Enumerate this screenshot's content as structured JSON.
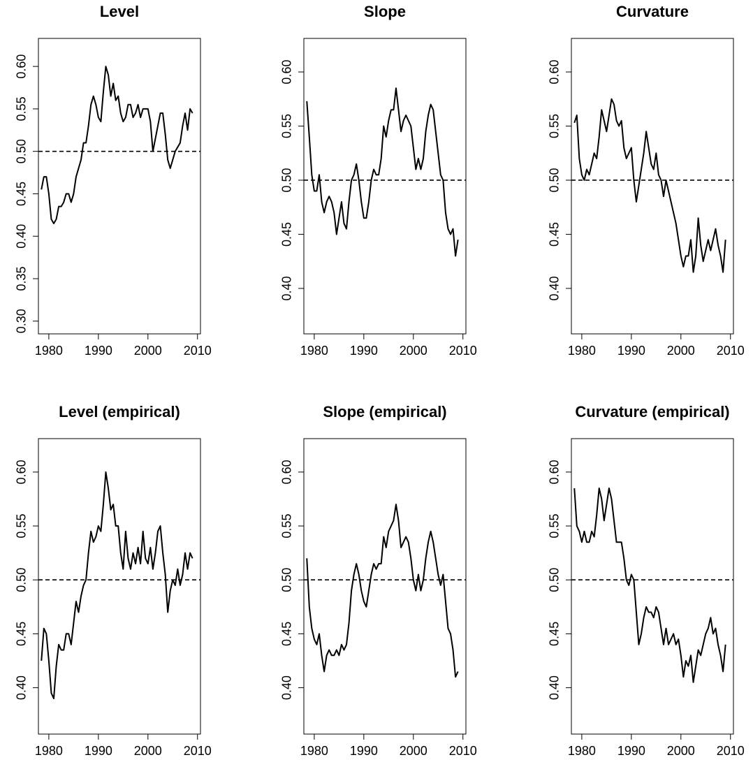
{
  "chart_data": [
    {
      "type": "line",
      "title": "Level",
      "x": [
        1978.5,
        1979,
        1979.5,
        1980,
        1980.5,
        1981,
        1981.5,
        1982,
        1982.5,
        1983,
        1983.5,
        1984,
        1984.5,
        1985,
        1985.5,
        1986,
        1986.5,
        1987,
        1987.5,
        1988,
        1988.5,
        1989,
        1989.5,
        1990,
        1990.5,
        1991,
        1991.5,
        1992,
        1992.5,
        1993,
        1993.5,
        1994,
        1994.5,
        1995,
        1995.5,
        1996,
        1996.5,
        1997,
        1997.5,
        1998,
        1998.5,
        1999,
        1999.5,
        2000,
        2000.5,
        2001,
        2001.5,
        2002,
        2002.5,
        2003,
        2003.5,
        2004,
        2004.5,
        2005,
        2005.5,
        2006,
        2006.5,
        2007,
        2007.5,
        2008,
        2008.5,
        2009
      ],
      "values": [
        0.455,
        0.47,
        0.47,
        0.45,
        0.42,
        0.415,
        0.42,
        0.435,
        0.435,
        0.44,
        0.45,
        0.45,
        0.44,
        0.45,
        0.47,
        0.48,
        0.49,
        0.51,
        0.51,
        0.53,
        0.555,
        0.565,
        0.555,
        0.54,
        0.535,
        0.57,
        0.6,
        0.59,
        0.565,
        0.58,
        0.56,
        0.565,
        0.545,
        0.535,
        0.54,
        0.555,
        0.555,
        0.54,
        0.545,
        0.555,
        0.54,
        0.55,
        0.55,
        0.55,
        0.535,
        0.5,
        0.515,
        0.53,
        0.545,
        0.545,
        0.52,
        0.49,
        0.48,
        0.49,
        0.5,
        0.505,
        0.51,
        0.53,
        0.545,
        0.525,
        0.55,
        0.545
      ],
      "color": "#000000",
      "hline": 0.5,
      "xlim": [
        1977.9,
        2010.6
      ],
      "xticks": [
        1980,
        1990,
        2000,
        2010
      ],
      "ylim": [
        0.285,
        0.633
      ],
      "yticks": [
        {
          "value": 0.3,
          "label": "0.30"
        },
        {
          "value": 0.35,
          "label": "0.35"
        },
        {
          "value": 0.4,
          "label": "0.40"
        },
        {
          "value": 0.45,
          "label": "0.45"
        },
        {
          "value": 0.5,
          "label": "0.50"
        },
        {
          "value": 0.55,
          "label": "0.55"
        },
        {
          "value": 0.6,
          "label": "0.60"
        }
      ]
    },
    {
      "type": "line",
      "title": "Slope",
      "x": [
        1978.5,
        1979,
        1979.5,
        1980,
        1980.5,
        1981,
        1981.5,
        1982,
        1982.5,
        1983,
        1983.5,
        1984,
        1984.5,
        1985,
        1985.5,
        1986,
        1986.5,
        1987,
        1987.5,
        1988,
        1988.5,
        1989,
        1989.5,
        1990,
        1990.5,
        1991,
        1991.5,
        1992,
        1992.5,
        1993,
        1993.5,
        1994,
        1994.5,
        1995,
        1995.5,
        1996,
        1996.5,
        1997,
        1997.5,
        1998,
        1998.5,
        1999,
        1999.5,
        2000,
        2000.5,
        2001,
        2001.5,
        2002,
        2002.5,
        2003,
        2003.5,
        2004,
        2004.5,
        2005,
        2005.5,
        2006,
        2006.5,
        2007,
        2007.5,
        2008,
        2008.5,
        2009
      ],
      "values": [
        0.573,
        0.54,
        0.505,
        0.49,
        0.49,
        0.505,
        0.48,
        0.47,
        0.48,
        0.485,
        0.48,
        0.47,
        0.45,
        0.465,
        0.48,
        0.46,
        0.455,
        0.48,
        0.5,
        0.505,
        0.515,
        0.5,
        0.48,
        0.465,
        0.465,
        0.48,
        0.5,
        0.51,
        0.505,
        0.505,
        0.52,
        0.55,
        0.54,
        0.555,
        0.565,
        0.565,
        0.585,
        0.565,
        0.545,
        0.555,
        0.56,
        0.555,
        0.55,
        0.53,
        0.51,
        0.52,
        0.51,
        0.52,
        0.545,
        0.56,
        0.57,
        0.565,
        0.545,
        0.525,
        0.505,
        0.5,
        0.47,
        0.455,
        0.45,
        0.455,
        0.43,
        0.445
      ],
      "color": "#000000",
      "hline": 0.5,
      "xlim": [
        1977.9,
        2010.6
      ],
      "xticks": [
        1980,
        1990,
        2000,
        2010
      ],
      "ylim": [
        0.358,
        0.631
      ],
      "yticks": [
        {
          "value": 0.4,
          "label": "0.40"
        },
        {
          "value": 0.45,
          "label": "0.45"
        },
        {
          "value": 0.5,
          "label": "0.50"
        },
        {
          "value": 0.55,
          "label": "0.55"
        },
        {
          "value": 0.6,
          "label": "0.60"
        }
      ]
    },
    {
      "type": "line",
      "title": "Curvature",
      "x": [
        1978.5,
        1979,
        1979.5,
        1980,
        1980.5,
        1981,
        1981.5,
        1982,
        1982.5,
        1983,
        1983.5,
        1984,
        1984.5,
        1985,
        1985.5,
        1986,
        1986.5,
        1987,
        1987.5,
        1988,
        1988.5,
        1989,
        1989.5,
        1990,
        1990.5,
        1991,
        1991.5,
        1992,
        1992.5,
        1993,
        1993.5,
        1994,
        1994.5,
        1995,
        1995.5,
        1996,
        1996.5,
        1997,
        1997.5,
        1998,
        1998.5,
        1999,
        1999.5,
        2000,
        2000.5,
        2001,
        2001.5,
        2002,
        2002.5,
        2003,
        2003.5,
        2004,
        2004.5,
        2005,
        2005.5,
        2006,
        2006.5,
        2007,
        2007.5,
        2008,
        2008.5,
        2009
      ],
      "values": [
        0.553,
        0.56,
        0.52,
        0.505,
        0.5,
        0.51,
        0.505,
        0.515,
        0.525,
        0.52,
        0.54,
        0.565,
        0.555,
        0.545,
        0.56,
        0.575,
        0.57,
        0.555,
        0.55,
        0.555,
        0.53,
        0.52,
        0.525,
        0.53,
        0.5,
        0.48,
        0.495,
        0.51,
        0.525,
        0.545,
        0.53,
        0.515,
        0.51,
        0.525,
        0.505,
        0.5,
        0.485,
        0.5,
        0.49,
        0.48,
        0.47,
        0.46,
        0.445,
        0.43,
        0.42,
        0.43,
        0.43,
        0.445,
        0.415,
        0.43,
        0.465,
        0.44,
        0.425,
        0.435,
        0.445,
        0.435,
        0.445,
        0.455,
        0.44,
        0.43,
        0.415,
        0.445
      ],
      "color": "#000000",
      "hline": 0.5,
      "xlim": [
        1977.9,
        2010.6
      ],
      "xticks": [
        1980,
        1990,
        2000,
        2010
      ],
      "ylim": [
        0.358,
        0.631
      ],
      "yticks": [
        {
          "value": 0.4,
          "label": "0.40"
        },
        {
          "value": 0.45,
          "label": "0.45"
        },
        {
          "value": 0.5,
          "label": "0.50"
        },
        {
          "value": 0.55,
          "label": "0.55"
        },
        {
          "value": 0.6,
          "label": "0.60"
        }
      ]
    },
    {
      "type": "line",
      "title": "Level (empirical)",
      "x": [
        1978.5,
        1979,
        1979.5,
        1980,
        1980.5,
        1981,
        1981.5,
        1982,
        1982.5,
        1983,
        1983.5,
        1984,
        1984.5,
        1985,
        1985.5,
        1986,
        1986.5,
        1987,
        1987.5,
        1988,
        1988.5,
        1989,
        1989.5,
        1990,
        1990.5,
        1991,
        1991.5,
        1992,
        1992.5,
        1993,
        1993.5,
        1994,
        1994.5,
        1995,
        1995.5,
        1996,
        1996.5,
        1997,
        1997.5,
        1998,
        1998.5,
        1999,
        1999.5,
        2000,
        2000.5,
        2001,
        2001.5,
        2002,
        2002.5,
        2003,
        2003.5,
        2004,
        2004.5,
        2005,
        2005.5,
        2006,
        2006.5,
        2007,
        2007.5,
        2008,
        2008.5,
        2009
      ],
      "values": [
        0.425,
        0.455,
        0.45,
        0.425,
        0.395,
        0.39,
        0.42,
        0.44,
        0.435,
        0.435,
        0.45,
        0.45,
        0.44,
        0.46,
        0.48,
        0.47,
        0.485,
        0.495,
        0.5,
        0.525,
        0.545,
        0.535,
        0.54,
        0.55,
        0.545,
        0.57,
        0.6,
        0.585,
        0.565,
        0.57,
        0.55,
        0.55,
        0.525,
        0.51,
        0.545,
        0.52,
        0.51,
        0.525,
        0.515,
        0.53,
        0.515,
        0.545,
        0.52,
        0.515,
        0.53,
        0.51,
        0.525,
        0.545,
        0.55,
        0.525,
        0.505,
        0.47,
        0.49,
        0.5,
        0.495,
        0.51,
        0.495,
        0.505,
        0.525,
        0.51,
        0.525,
        0.52
      ],
      "color": "#000000",
      "hline": 0.5,
      "xlim": [
        1977.9,
        2010.6
      ],
      "xticks": [
        1980,
        1990,
        2000,
        2010
      ],
      "ylim": [
        0.357,
        0.631
      ],
      "yticks": [
        {
          "value": 0.4,
          "label": "0.40"
        },
        {
          "value": 0.45,
          "label": "0.45"
        },
        {
          "value": 0.5,
          "label": "0.50"
        },
        {
          "value": 0.55,
          "label": "0.55"
        },
        {
          "value": 0.6,
          "label": "0.60"
        }
      ]
    },
    {
      "type": "line",
      "title": "Slope (empirical)",
      "x": [
        1978.5,
        1979,
        1979.5,
        1980,
        1980.5,
        1981,
        1981.5,
        1982,
        1982.5,
        1983,
        1983.5,
        1984,
        1984.5,
        1985,
        1985.5,
        1986,
        1986.5,
        1987,
        1987.5,
        1988,
        1988.5,
        1989,
        1989.5,
        1990,
        1990.5,
        1991,
        1991.5,
        1992,
        1992.5,
        1993,
        1993.5,
        1994,
        1994.5,
        1995,
        1995.5,
        1996,
        1996.5,
        1997,
        1997.5,
        1998,
        1998.5,
        1999,
        1999.5,
        2000,
        2000.5,
        2001,
        2001.5,
        2002,
        2002.5,
        2003,
        2003.5,
        2004,
        2004.5,
        2005,
        2005.5,
        2006,
        2006.5,
        2007,
        2007.5,
        2008,
        2008.5,
        2009
      ],
      "values": [
        0.52,
        0.475,
        0.455,
        0.445,
        0.44,
        0.45,
        0.43,
        0.415,
        0.43,
        0.435,
        0.43,
        0.43,
        0.435,
        0.43,
        0.44,
        0.435,
        0.44,
        0.46,
        0.49,
        0.505,
        0.515,
        0.505,
        0.49,
        0.48,
        0.475,
        0.49,
        0.505,
        0.515,
        0.51,
        0.515,
        0.515,
        0.54,
        0.53,
        0.545,
        0.55,
        0.555,
        0.57,
        0.555,
        0.53,
        0.535,
        0.54,
        0.535,
        0.52,
        0.5,
        0.49,
        0.505,
        0.49,
        0.5,
        0.52,
        0.535,
        0.545,
        0.535,
        0.52,
        0.505,
        0.495,
        0.505,
        0.48,
        0.455,
        0.45,
        0.435,
        0.41,
        0.415
      ],
      "color": "#000000",
      "hline": 0.5,
      "xlim": [
        1977.9,
        2010.6
      ],
      "xticks": [
        1980,
        1990,
        2000,
        2010
      ],
      "ylim": [
        0.357,
        0.631
      ],
      "yticks": [
        {
          "value": 0.4,
          "label": "0.40"
        },
        {
          "value": 0.45,
          "label": "0.45"
        },
        {
          "value": 0.5,
          "label": "0.50"
        },
        {
          "value": 0.55,
          "label": "0.55"
        },
        {
          "value": 0.6,
          "label": "0.60"
        }
      ]
    },
    {
      "type": "line",
      "title": "Curvature (empirical)",
      "x": [
        1978.5,
        1979,
        1979.5,
        1980,
        1980.5,
        1981,
        1981.5,
        1982,
        1982.5,
        1983,
        1983.5,
        1984,
        1984.5,
        1985,
        1985.5,
        1986,
        1986.5,
        1987,
        1987.5,
        1988,
        1988.5,
        1989,
        1989.5,
        1990,
        1990.5,
        1991,
        1991.5,
        1992,
        1992.5,
        1993,
        1993.5,
        1994,
        1994.5,
        1995,
        1995.5,
        1996,
        1996.5,
        1997,
        1997.5,
        1998,
        1998.5,
        1999,
        1999.5,
        2000,
        2000.5,
        2001,
        2001.5,
        2002,
        2002.5,
        2003,
        2003.5,
        2004,
        2004.5,
        2005,
        2005.5,
        2006,
        2006.5,
        2007,
        2007.5,
        2008,
        2008.5,
        2009
      ],
      "values": [
        0.585,
        0.55,
        0.545,
        0.535,
        0.545,
        0.535,
        0.535,
        0.545,
        0.54,
        0.56,
        0.585,
        0.575,
        0.555,
        0.57,
        0.585,
        0.575,
        0.555,
        0.535,
        0.535,
        0.535,
        0.52,
        0.5,
        0.495,
        0.505,
        0.5,
        0.47,
        0.44,
        0.45,
        0.465,
        0.475,
        0.47,
        0.47,
        0.465,
        0.475,
        0.47,
        0.455,
        0.44,
        0.455,
        0.44,
        0.445,
        0.45,
        0.44,
        0.445,
        0.43,
        0.41,
        0.425,
        0.42,
        0.43,
        0.405,
        0.42,
        0.435,
        0.43,
        0.44,
        0.45,
        0.455,
        0.465,
        0.45,
        0.455,
        0.44,
        0.43,
        0.415,
        0.44
      ],
      "color": "#000000",
      "hline": 0.5,
      "xlim": [
        1977.9,
        2010.6
      ],
      "xticks": [
        1980,
        1990,
        2000,
        2010
      ],
      "ylim": [
        0.357,
        0.631
      ],
      "yticks": [
        {
          "value": 0.4,
          "label": "0.40"
        },
        {
          "value": 0.45,
          "label": "0.45"
        },
        {
          "value": 0.5,
          "label": "0.50"
        },
        {
          "value": 0.55,
          "label": "0.55"
        },
        {
          "value": 0.6,
          "label": "0.60"
        }
      ]
    }
  ]
}
